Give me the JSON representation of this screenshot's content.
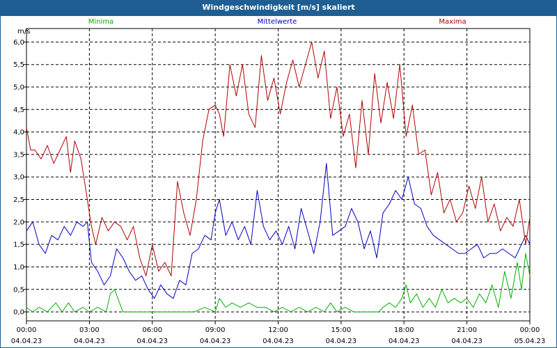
{
  "chart_data": {
    "type": "line",
    "title": "Windgeschwindigkeit [m/s] skaliert",
    "ylabel": "m/s",
    "xlabel": "",
    "ylim": [
      -0.2,
      6.3
    ],
    "xlim": [
      0,
      24
    ],
    "grid": true,
    "legend_position": "top",
    "yticks": [
      0.0,
      0.5,
      1.0,
      1.5,
      2.0,
      2.5,
      3.0,
      3.5,
      4.0,
      4.5,
      5.0,
      5.5,
      6.0
    ],
    "ytick_labels": [
      "0,0",
      "0,5",
      "1,0",
      "1,5",
      "2,0",
      "2,5",
      "3,0",
      "3,5",
      "4,0",
      "4,5",
      "5,0",
      "5,5",
      "6,0"
    ],
    "xticks": [
      0,
      3,
      6,
      9,
      12,
      15,
      18,
      21,
      24
    ],
    "xtick_times": [
      "00:00",
      "03:00",
      "06:00",
      "09:00",
      "12:00",
      "15:00",
      "18:00",
      "21:00",
      "00:00"
    ],
    "xtick_dates": [
      "04.04.23",
      "04.04.23",
      "04.04.23",
      "04.04.23",
      "04.04.23",
      "04.04.23",
      "04.04.23",
      "04.04.23",
      "05.04.23"
    ],
    "series": [
      {
        "name": "Minima",
        "color": "#00b000",
        "x": [
          0.0,
          0.3,
          0.6,
          1.0,
          1.4,
          1.7,
          2.0,
          2.3,
          2.7,
          3.0,
          3.4,
          3.8,
          4.0,
          4.2,
          4.6,
          5.0,
          5.5,
          6.0,
          7.0,
          8.0,
          8.5,
          9.0,
          9.2,
          9.5,
          9.8,
          10.2,
          10.6,
          11.0,
          11.4,
          11.8,
          12.2,
          12.6,
          13.0,
          13.4,
          13.8,
          14.2,
          14.5,
          14.8,
          15.2,
          15.6,
          16.0,
          16.4,
          16.8,
          17.0,
          17.3,
          17.6,
          17.9,
          18.1,
          18.3,
          18.6,
          18.9,
          19.2,
          19.5,
          19.8,
          20.1,
          20.4,
          20.7,
          21.0,
          21.3,
          21.6,
          21.9,
          22.2,
          22.5,
          22.8,
          23.1,
          23.4,
          23.6,
          23.8,
          24.0
        ],
        "values": [
          0.1,
          0.0,
          0.1,
          0.0,
          0.2,
          0.0,
          0.2,
          0.0,
          0.1,
          0.0,
          0.1,
          0.0,
          0.4,
          0.5,
          0.0,
          0.0,
          0.0,
          0.0,
          0.0,
          0.0,
          0.1,
          0.0,
          0.3,
          0.1,
          0.2,
          0.1,
          0.2,
          0.1,
          0.1,
          0.0,
          0.1,
          0.0,
          0.1,
          0.0,
          0.1,
          0.0,
          0.2,
          0.0,
          0.1,
          0.0,
          0.0,
          0.0,
          0.0,
          0.1,
          0.2,
          0.1,
          0.3,
          0.6,
          0.2,
          0.4,
          0.1,
          0.3,
          0.1,
          0.5,
          0.2,
          0.3,
          0.2,
          0.3,
          0.1,
          0.4,
          0.2,
          0.6,
          0.1,
          0.9,
          0.3,
          1.1,
          0.5,
          1.3,
          0.8
        ]
      },
      {
        "name": "Mittelwerte",
        "color": "#0000c0",
        "x": [
          0.0,
          0.3,
          0.6,
          0.9,
          1.2,
          1.5,
          1.8,
          2.1,
          2.4,
          2.7,
          2.9,
          3.1,
          3.4,
          3.7,
          4.0,
          4.3,
          4.6,
          4.9,
          5.2,
          5.5,
          5.8,
          6.1,
          6.4,
          6.7,
          7.0,
          7.3,
          7.6,
          7.9,
          8.2,
          8.5,
          8.8,
          9.0,
          9.2,
          9.5,
          9.8,
          10.1,
          10.4,
          10.7,
          11.0,
          11.3,
          11.6,
          11.9,
          12.2,
          12.5,
          12.8,
          13.1,
          13.4,
          13.7,
          14.0,
          14.3,
          14.6,
          14.9,
          15.2,
          15.5,
          15.8,
          16.1,
          16.4,
          16.7,
          17.0,
          17.3,
          17.6,
          17.9,
          18.2,
          18.5,
          18.8,
          19.1,
          19.4,
          19.7,
          20.0,
          20.3,
          20.6,
          20.9,
          21.2,
          21.5,
          21.8,
          22.1,
          22.4,
          22.7,
          23.0,
          23.3,
          23.6,
          23.8,
          24.0
        ],
        "values": [
          1.8,
          2.0,
          1.5,
          1.3,
          1.7,
          1.6,
          1.9,
          1.7,
          2.0,
          1.9,
          2.0,
          1.1,
          0.9,
          0.6,
          0.8,
          1.4,
          1.2,
          0.9,
          0.7,
          0.8,
          0.5,
          0.3,
          0.6,
          0.4,
          0.3,
          0.7,
          0.6,
          1.3,
          1.4,
          1.7,
          1.6,
          2.2,
          2.5,
          1.7,
          2.0,
          1.6,
          1.9,
          1.5,
          2.7,
          1.9,
          1.6,
          1.8,
          1.5,
          1.9,
          1.4,
          2.3,
          1.8,
          1.3,
          2.0,
          3.3,
          1.7,
          1.8,
          1.9,
          2.3,
          2.0,
          1.4,
          1.8,
          1.2,
          2.2,
          2.4,
          2.7,
          2.5,
          3.0,
          2.4,
          2.3,
          1.9,
          1.7,
          1.6,
          1.5,
          1.4,
          1.3,
          1.3,
          1.4,
          1.5,
          1.2,
          1.3,
          1.3,
          1.4,
          1.3,
          1.2,
          1.5,
          1.7,
          1.5
        ]
      },
      {
        "name": "Maxima",
        "color": "#b00000",
        "x": [
          0.0,
          0.2,
          0.4,
          0.7,
          1.0,
          1.3,
          1.6,
          1.9,
          2.1,
          2.3,
          2.6,
          2.9,
          3.1,
          3.3,
          3.6,
          3.9,
          4.2,
          4.5,
          4.8,
          5.1,
          5.4,
          5.7,
          6.0,
          6.3,
          6.6,
          6.9,
          7.2,
          7.5,
          7.8,
          8.1,
          8.4,
          8.7,
          9.0,
          9.2,
          9.4,
          9.7,
          10.0,
          10.3,
          10.6,
          10.9,
          11.2,
          11.5,
          11.8,
          12.1,
          12.4,
          12.7,
          13.0,
          13.3,
          13.6,
          13.9,
          14.2,
          14.5,
          14.8,
          15.1,
          15.4,
          15.7,
          16.0,
          16.3,
          16.6,
          16.9,
          17.2,
          17.5,
          17.8,
          18.1,
          18.4,
          18.7,
          19.0,
          19.3,
          19.6,
          19.9,
          20.2,
          20.5,
          20.8,
          21.1,
          21.4,
          21.7,
          22.0,
          22.3,
          22.6,
          22.9,
          23.2,
          23.5,
          23.8,
          24.0
        ],
        "values": [
          4.1,
          3.6,
          3.6,
          3.4,
          3.7,
          3.3,
          3.6,
          3.9,
          3.1,
          3.8,
          3.4,
          2.5,
          1.9,
          1.5,
          2.1,
          1.8,
          2.0,
          1.9,
          1.6,
          1.9,
          1.2,
          0.8,
          1.5,
          0.9,
          1.1,
          0.8,
          2.9,
          2.2,
          1.7,
          2.5,
          3.8,
          4.5,
          4.6,
          4.4,
          3.9,
          5.5,
          4.8,
          5.5,
          4.4,
          4.1,
          5.7,
          4.7,
          5.2,
          4.4,
          5.1,
          5.6,
          5.0,
          5.5,
          6.0,
          5.2,
          5.8,
          4.3,
          5.0,
          3.9,
          4.4,
          3.2,
          4.7,
          3.5,
          5.3,
          4.2,
          5.1,
          4.3,
          5.5,
          3.9,
          4.6,
          3.5,
          3.6,
          2.6,
          3.1,
          2.2,
          2.5,
          2.0,
          2.2,
          2.8,
          2.3,
          3.0,
          2.0,
          2.4,
          1.8,
          2.1,
          1.9,
          2.5,
          1.5,
          2.1
        ]
      }
    ]
  }
}
